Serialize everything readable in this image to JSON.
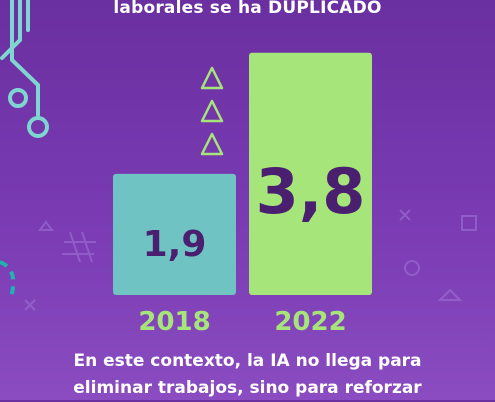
{
  "headline": "laborales se ha DUPLICADO",
  "footer": {
    "line1": "En este contexto, la IA no llega para",
    "line2": "eliminar trabajos, sino para reforzar"
  },
  "chart_data": {
    "type": "bar",
    "categories": [
      "2018",
      "2022"
    ],
    "values": [
      1.9,
      3.8
    ],
    "value_labels": [
      "1,9",
      "3,8"
    ],
    "title": "",
    "xlabel": "",
    "ylabel": "",
    "ylim": [
      0,
      4
    ],
    "grid": false,
    "colors": [
      "#6fc3c3",
      "#a5e57a"
    ],
    "value_color": "#4a1f70",
    "category_color": "#a5e57a"
  },
  "decor": {
    "triangle_count": 3,
    "triangle_color": "#a5e57a",
    "circuit_color": "#7fd6d0"
  }
}
